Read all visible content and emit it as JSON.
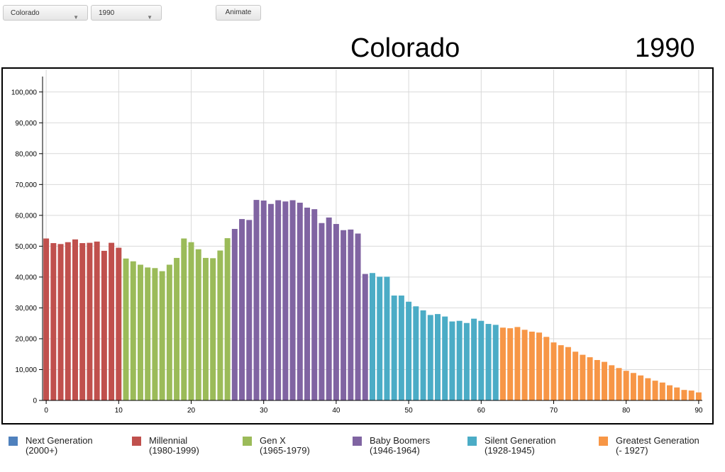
{
  "controls": {
    "state_value": "Colorado",
    "year_value": "1990",
    "animate_label": "Animate"
  },
  "header": {
    "state": "Colorado",
    "year": "1990"
  },
  "legend": [
    {
      "name": "Next Generation",
      "range": "(2000+)",
      "color": "#4f81bd"
    },
    {
      "name": "Millennial",
      "range": "(1980-1999)",
      "color": "#c0504d"
    },
    {
      "name": "Gen X",
      "range": "(1965-1979)",
      "color": "#9bbb59"
    },
    {
      "name": "Baby Boomers",
      "range": "(1946-1964)",
      "color": "#8064a2"
    },
    {
      "name": "Silent Generation",
      "range": "(1928-1945)",
      "color": "#4bacc6"
    },
    {
      "name": "Greatest Generation",
      "range": "(- 1927)",
      "color": "#f79646"
    }
  ],
  "chart_data": {
    "type": "bar",
    "x_label": "",
    "y_label": "",
    "x_ticks": [
      "0",
      "10",
      "20",
      "30",
      "40",
      "50",
      "60",
      "70",
      "80",
      "90"
    ],
    "y_ticks": [
      "0",
      "10,000",
      "20,000",
      "30,000",
      "40,000",
      "50,000",
      "60,000",
      "70,000",
      "80,000",
      "90,000",
      "100,000"
    ],
    "xlim": [
      0,
      90
    ],
    "ylim": [
      0,
      105000
    ],
    "grid": true,
    "ages": [
      0,
      1,
      2,
      3,
      4,
      5,
      6,
      7,
      8,
      9,
      10,
      11,
      12,
      13,
      14,
      15,
      16,
      17,
      18,
      19,
      20,
      21,
      22,
      23,
      24,
      25,
      26,
      27,
      28,
      29,
      30,
      31,
      32,
      33,
      34,
      35,
      36,
      37,
      38,
      39,
      40,
      41,
      42,
      43,
      44,
      45,
      46,
      47,
      48,
      49,
      50,
      51,
      52,
      53,
      54,
      55,
      56,
      57,
      58,
      59,
      60,
      61,
      62,
      63,
      64,
      65,
      66,
      67,
      68,
      69,
      70,
      71,
      72,
      73,
      74,
      75,
      76,
      77,
      78,
      79,
      80,
      81,
      82,
      83,
      84,
      85,
      86,
      87,
      88,
      89,
      90
    ],
    "values": [
      52500,
      51000,
      50700,
      51300,
      52200,
      51000,
      51100,
      51500,
      48500,
      51100,
      49500,
      46000,
      45100,
      44000,
      43100,
      42900,
      41900,
      44000,
      46200,
      52500,
      51300,
      49000,
      46200,
      46100,
      48600,
      52600,
      55600,
      58800,
      58500,
      65000,
      64800,
      63700,
      64900,
      64500,
      64900,
      64100,
      62500,
      62000,
      57500,
      59300,
      57200,
      55200,
      55400,
      54100,
      41000,
      41300,
      40100,
      40100,
      34000,
      34000,
      32000,
      30500,
      29200,
      27700,
      28000,
      27200,
      25600,
      25800,
      25100,
      26500,
      25800,
      24800,
      24500,
      23600,
      23400,
      23800,
      22900,
      22300,
      22000,
      20600,
      18800,
      17900,
      17300,
      15800,
      14800,
      14000,
      13100,
      12500,
      11400,
      10500,
      9600,
      8900,
      8100,
      7200,
      6400,
      5800,
      4900,
      4200,
      3400,
      3200,
      2600
    ],
    "generations": [
      "Millennial",
      "Millennial",
      "Millennial",
      "Millennial",
      "Millennial",
      "Millennial",
      "Millennial",
      "Millennial",
      "Millennial",
      "Millennial",
      "Millennial",
      "Gen X",
      "Gen X",
      "Gen X",
      "Gen X",
      "Gen X",
      "Gen X",
      "Gen X",
      "Gen X",
      "Gen X",
      "Gen X",
      "Gen X",
      "Gen X",
      "Gen X",
      "Gen X",
      "Gen X",
      "Baby Boomers",
      "Baby Boomers",
      "Baby Boomers",
      "Baby Boomers",
      "Baby Boomers",
      "Baby Boomers",
      "Baby Boomers",
      "Baby Boomers",
      "Baby Boomers",
      "Baby Boomers",
      "Baby Boomers",
      "Baby Boomers",
      "Baby Boomers",
      "Baby Boomers",
      "Baby Boomers",
      "Baby Boomers",
      "Baby Boomers",
      "Baby Boomers",
      "Baby Boomers",
      "Silent Generation",
      "Silent Generation",
      "Silent Generation",
      "Silent Generation",
      "Silent Generation",
      "Silent Generation",
      "Silent Generation",
      "Silent Generation",
      "Silent Generation",
      "Silent Generation",
      "Silent Generation",
      "Silent Generation",
      "Silent Generation",
      "Silent Generation",
      "Silent Generation",
      "Silent Generation",
      "Silent Generation",
      "Silent Generation",
      "Greatest Generation",
      "Greatest Generation",
      "Greatest Generation",
      "Greatest Generation",
      "Greatest Generation",
      "Greatest Generation",
      "Greatest Generation",
      "Greatest Generation",
      "Greatest Generation",
      "Greatest Generation",
      "Greatest Generation",
      "Greatest Generation",
      "Greatest Generation",
      "Greatest Generation",
      "Greatest Generation",
      "Greatest Generation",
      "Greatest Generation",
      "Greatest Generation",
      "Greatest Generation",
      "Greatest Generation",
      "Greatest Generation",
      "Greatest Generation",
      "Greatest Generation",
      "Greatest Generation",
      "Greatest Generation",
      "Greatest Generation",
      "Greatest Generation",
      "Greatest Generation"
    ],
    "colors": {
      "Next Generation": "#4f81bd",
      "Millennial": "#c0504d",
      "Gen X": "#9bbb59",
      "Baby Boomers": "#8064a2",
      "Silent Generation": "#4bacc6",
      "Greatest Generation": "#f79646"
    }
  }
}
